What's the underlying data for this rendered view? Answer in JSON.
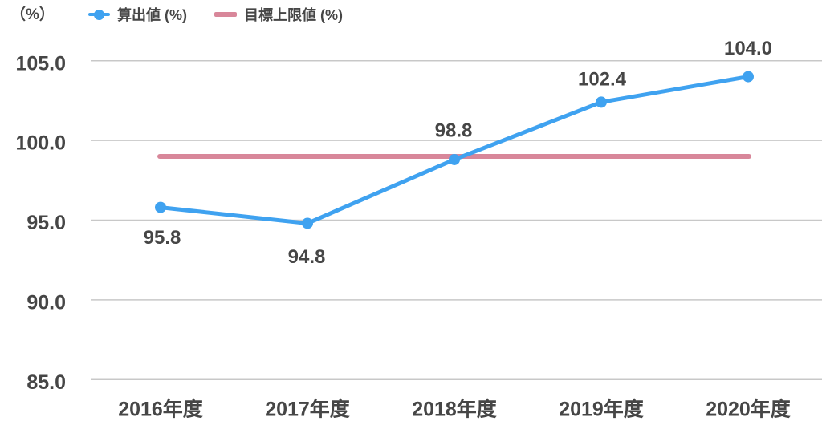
{
  "chart_data": {
    "type": "line",
    "unit_label": "（%）",
    "categories": [
      "2016年度",
      "2017年度",
      "2018年度",
      "2019年度",
      "2020年度"
    ],
    "series": [
      {
        "name": "算出値 (%)",
        "type": "line",
        "color": "#3fa2f0",
        "values": [
          95.8,
          94.8,
          98.8,
          102.4,
          104.0
        ],
        "data_labels": [
          "95.8",
          "94.8",
          "98.8",
          "102.4",
          "104.0"
        ]
      },
      {
        "name": "目標上限値 (%)",
        "type": "reference-line",
        "color": "#d8879a",
        "value": 99.0
      }
    ],
    "ytick_labels": [
      "85.0",
      "90.0",
      "95.0",
      "100.0",
      "105.0"
    ],
    "ytick_values": [
      85,
      90,
      95,
      100,
      105
    ],
    "ylim": [
      85,
      105
    ],
    "grid": "horizontal",
    "legend_position": "top",
    "colors": {
      "text": "#464646",
      "grid": "#c8c8c8",
      "background": "#ffffff"
    }
  }
}
